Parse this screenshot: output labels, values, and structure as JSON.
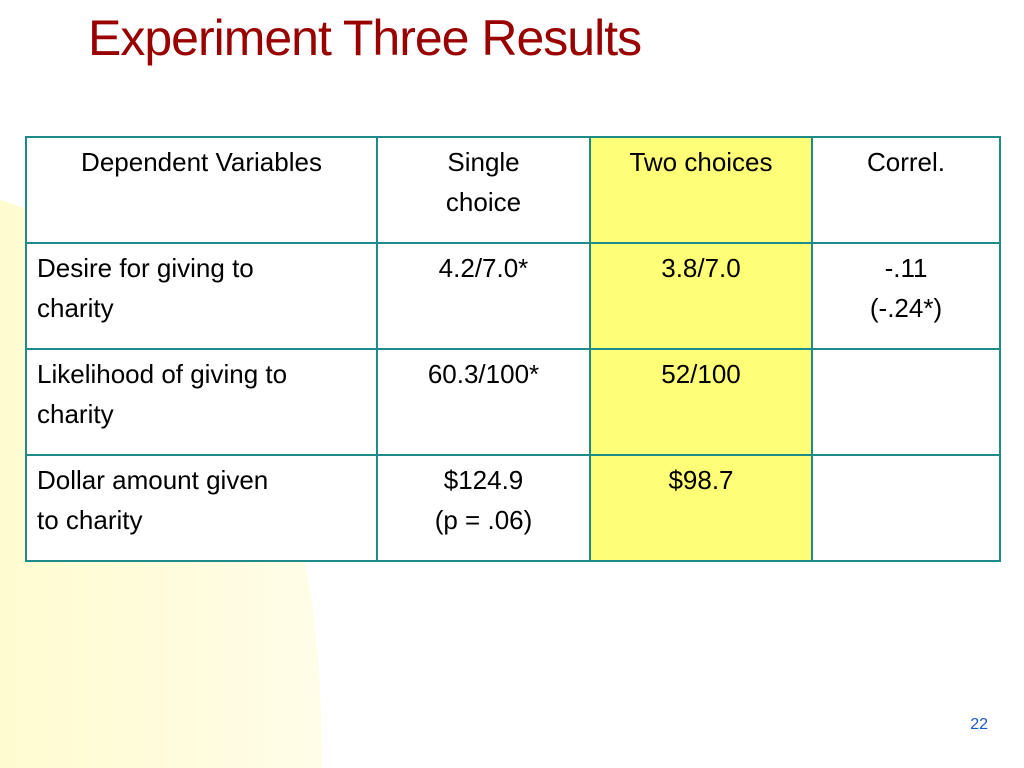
{
  "slide": {
    "title": "Experiment Three Results",
    "page_number": "22",
    "accent_color": "#990000",
    "highlight_color": "#ffff77",
    "border_color": "#1f8a8a"
  },
  "table": {
    "headers": {
      "dependent_variables": "Dependent Variables",
      "single_choice_line1": "Single",
      "single_choice_line2": "choice",
      "two_choices": "Two choices",
      "correl": "Correl."
    },
    "rows": [
      {
        "label_line1": "Desire for giving to",
        "label_line2": "charity",
        "single_line1": "4.2/7.0*",
        "single_line2": "",
        "two": "3.8/7.0",
        "correl_line1": "-.11",
        "correl_line2": "(-.24*)"
      },
      {
        "label_line1": "Likelihood of giving to",
        "label_line2": "charity",
        "single_line1": "60.3/100*",
        "single_line2": "",
        "two": "52/100",
        "correl_line1": "",
        "correl_line2": ""
      },
      {
        "label_line1": "Dollar amount given",
        "label_line2": "to charity",
        "single_line1": "$124.9",
        "single_line2": "(p = .06)",
        "two": "$98.7",
        "correl_line1": "",
        "correl_line2": ""
      }
    ]
  }
}
